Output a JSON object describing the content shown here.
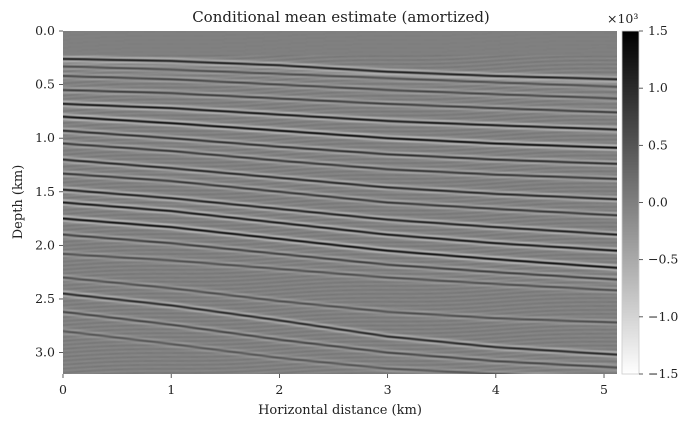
{
  "chart_data": {
    "type": "heatmap",
    "title": "Conditional mean estimate (amortized)",
    "xlabel": "Horizontal distance (km)",
    "ylabel": "Depth (km)",
    "xlim": [
      0,
      5.12
    ],
    "ylim": [
      3.2,
      0.0
    ],
    "xticks": [
      0,
      1,
      2,
      3,
      4,
      5
    ],
    "yticks": [
      0.0,
      0.5,
      1.0,
      1.5,
      2.0,
      2.5,
      3.0
    ],
    "grid": false,
    "colormap": "gray",
    "colorbar": {
      "label": "",
      "multiplier": "×10³",
      "min": -1.5,
      "max": 1.5,
      "ticks": [
        1.5,
        1.0,
        0.5,
        0.0,
        -0.5,
        -1.0,
        -1.5
      ],
      "tick_labels": [
        "1.5",
        "1.0",
        "0.5",
        "0.0",
        "−0.5",
        "−1.0",
        "−1.5"
      ]
    },
    "series": [
      {
        "reflectors": [
          {
            "x": [
              0.0,
              1.0,
              2.0,
              3.0,
              4.0,
              5.12
            ],
            "depth": [
              0.26,
              0.28,
              0.32,
              0.38,
              0.42,
              0.45
            ],
            "amp": 1.2
          },
          {
            "x": [
              0.0,
              1.0,
              2.0,
              3.0,
              4.0,
              5.12
            ],
            "depth": [
              0.33,
              0.36,
              0.4,
              0.44,
              0.48,
              0.52
            ],
            "amp": 0.6
          },
          {
            "x": [
              0.0,
              1.0,
              2.0,
              3.0,
              4.0,
              5.12
            ],
            "depth": [
              0.42,
              0.45,
              0.5,
              0.55,
              0.59,
              0.63
            ],
            "amp": 0.7
          },
          {
            "x": [
              0.0,
              1.0,
              2.0,
              3.0,
              4.0,
              5.12
            ],
            "depth": [
              0.55,
              0.58,
              0.63,
              0.68,
              0.72,
              0.76
            ],
            "amp": 0.8
          },
          {
            "x": [
              0.0,
              1.0,
              2.0,
              3.0,
              4.0,
              5.12
            ],
            "depth": [
              0.68,
              0.72,
              0.78,
              0.84,
              0.88,
              0.92
            ],
            "amp": 1.3
          },
          {
            "x": [
              0.0,
              1.0,
              2.0,
              3.0,
              4.0,
              5.12
            ],
            "depth": [
              0.8,
              0.86,
              0.93,
              1.0,
              1.05,
              1.09
            ],
            "amp": 1.4
          },
          {
            "x": [
              0.0,
              1.0,
              2.0,
              3.0,
              4.0,
              5.12
            ],
            "depth": [
              0.93,
              1.0,
              1.08,
              1.15,
              1.2,
              1.24
            ],
            "amp": 1.0
          },
          {
            "x": [
              0.0,
              1.0,
              2.0,
              3.0,
              4.0,
              5.12
            ],
            "depth": [
              1.05,
              1.12,
              1.21,
              1.29,
              1.34,
              1.38
            ],
            "amp": 0.9
          },
          {
            "x": [
              0.0,
              1.0,
              2.0,
              3.0,
              4.0,
              5.12
            ],
            "depth": [
              1.2,
              1.28,
              1.37,
              1.46,
              1.52,
              1.57
            ],
            "amp": 1.1
          },
          {
            "x": [
              0.0,
              1.0,
              2.0,
              3.0,
              4.0,
              5.12
            ],
            "depth": [
              1.33,
              1.4,
              1.5,
              1.6,
              1.66,
              1.72
            ],
            "amp": 0.9
          },
          {
            "x": [
              0.0,
              1.0,
              2.0,
              3.0,
              4.0,
              5.12
            ],
            "depth": [
              1.48,
              1.56,
              1.66,
              1.76,
              1.83,
              1.9
            ],
            "amp": 1.2
          },
          {
            "x": [
              0.0,
              1.0,
              2.0,
              3.0,
              4.0,
              5.12
            ],
            "depth": [
              1.6,
              1.68,
              1.79,
              1.9,
              1.98,
              2.05
            ],
            "amp": 1.3
          },
          {
            "x": [
              0.0,
              1.0,
              2.0,
              3.0,
              4.0,
              5.12
            ],
            "depth": [
              1.75,
              1.83,
              1.94,
              2.05,
              2.13,
              2.21
            ],
            "amp": 1.4
          },
          {
            "x": [
              0.0,
              1.0,
              2.0,
              3.0,
              4.0,
              5.12
            ],
            "depth": [
              1.9,
              1.98,
              2.08,
              2.18,
              2.25,
              2.32
            ],
            "amp": 0.8
          },
          {
            "x": [
              0.0,
              1.0,
              2.0,
              3.0,
              4.0,
              5.12
            ],
            "depth": [
              2.08,
              2.14,
              2.22,
              2.3,
              2.36,
              2.42
            ],
            "amp": 0.6
          },
          {
            "x": [
              0.0,
              1.0,
              2.0,
              3.0,
              4.0,
              5.12
            ],
            "depth": [
              2.3,
              2.4,
              2.52,
              2.62,
              2.68,
              2.72
            ],
            "amp": 0.6
          },
          {
            "x": [
              0.0,
              1.0,
              2.0,
              3.0,
              4.0,
              5.12
            ],
            "depth": [
              2.45,
              2.56,
              2.7,
              2.85,
              2.95,
              3.02
            ],
            "amp": 1.1
          },
          {
            "x": [
              0.0,
              1.0,
              2.0,
              3.0,
              4.0,
              5.12
            ],
            "depth": [
              2.62,
              2.74,
              2.88,
              3.0,
              3.08,
              3.14
            ],
            "amp": 0.7
          },
          {
            "x": [
              0.0,
              1.0,
              2.0,
              3.0,
              4.0,
              5.12
            ],
            "depth": [
              2.8,
              2.92,
              3.05,
              3.15,
              3.2,
              3.24
            ],
            "amp": 0.5
          }
        ]
      }
    ]
  }
}
